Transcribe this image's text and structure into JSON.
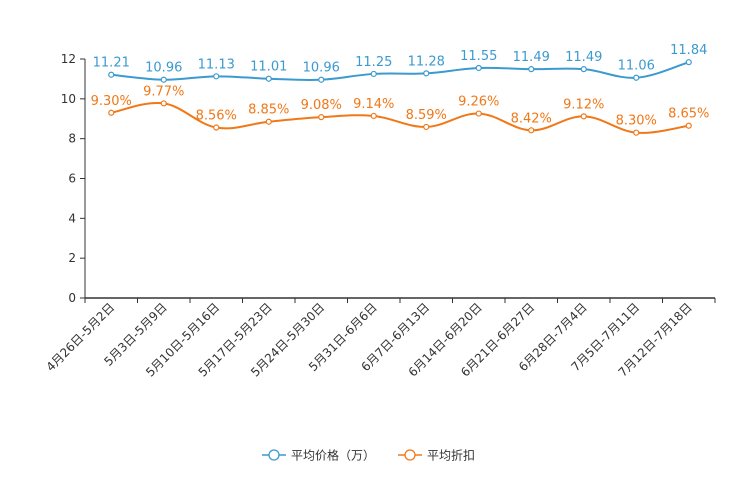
{
  "chart_data": {
    "type": "line",
    "title": "",
    "xlabel": "",
    "ylabel": "",
    "ylim": [
      0,
      12
    ],
    "yticks": [
      0,
      2,
      4,
      6,
      8,
      10,
      12
    ],
    "grid": false,
    "legend_position": "bottom-center",
    "categories": [
      "4月26日-5月2日",
      "5月3日-5月9日",
      "5月10日-5月16日",
      "5月17日-5月23日",
      "5月24日-5月30日",
      "5月31日-6月6日",
      "6月7日-6月13日",
      "6月14日-6月20日",
      "6月21日-6月27日",
      "6月28日-7月4日",
      "7月5日-7月11日",
      "7月12日-7月18日"
    ],
    "series": [
      {
        "name": "平均价格（万）",
        "color": "#3b9ad0",
        "values": [
          11.21,
          10.96,
          11.13,
          11.01,
          10.96,
          11.25,
          11.28,
          11.55,
          11.49,
          11.49,
          11.06,
          11.84
        ],
        "labels": [
          "11.21",
          "10.96",
          "11.13",
          "11.01",
          "10.96",
          "11.25",
          "11.28",
          "11.55",
          "11.49",
          "11.49",
          "11.06",
          "11.84"
        ]
      },
      {
        "name": "平均折扣",
        "color": "#f07818",
        "values": [
          9.3,
          9.77,
          8.56,
          8.85,
          9.08,
          9.14,
          8.59,
          9.26,
          8.42,
          9.12,
          8.3,
          8.65
        ],
        "labels": [
          "9.30%",
          "9.77%",
          "8.56%",
          "8.85%",
          "9.08%",
          "9.14%",
          "8.59%",
          "9.26%",
          "8.42%",
          "9.12%",
          "8.30%",
          "8.65%"
        ]
      }
    ]
  }
}
